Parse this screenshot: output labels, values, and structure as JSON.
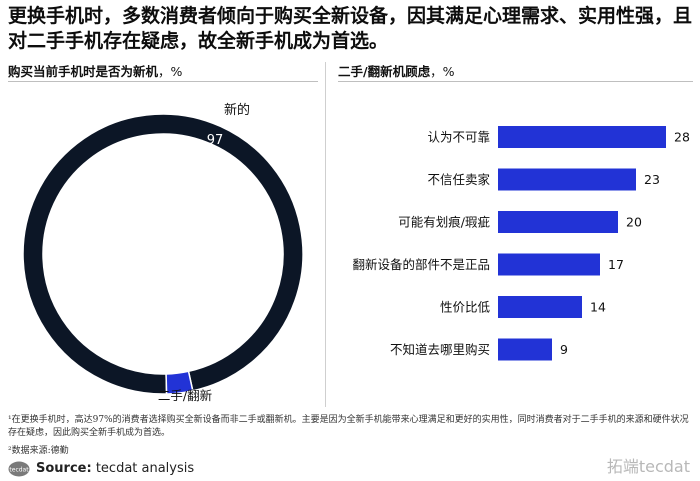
{
  "headline": "更换手机时，多数消费者倾向于购买全新设备，因其满足心理需求、实用性强，且对二手手机存在疑虑，故全新手机成为首选。",
  "left_panel": {
    "title": "购买当前手机时是否为新机",
    "unit": "，%"
  },
  "right_panel": {
    "title": "二手/翻新机顾虑",
    "unit": "，%"
  },
  "colors": {
    "dark": "#0c1626",
    "blue": "#2233d6"
  },
  "chart_data": [
    {
      "type": "pie",
      "variant": "donut",
      "title": "购买当前手机时是否为新机，%",
      "slices": [
        {
          "label": "新的",
          "value": 97,
          "color": "#0c1626"
        },
        {
          "label": "二手/翻新",
          "value": 3,
          "color": "#2233d6"
        }
      ]
    },
    {
      "type": "bar",
      "orientation": "horizontal",
      "title": "二手/翻新机顾虑，%",
      "categories": [
        "认为不可靠",
        "不信任卖家",
        "可能有划痕/瑕疵",
        "翻新设备的部件不是正品",
        "性价比低",
        "不知道去哪里购买"
      ],
      "values": [
        28,
        23,
        20,
        17,
        14,
        9
      ],
      "color": "#2233d6"
    }
  ],
  "footnote": "¹在更换手机时，高达97%的消费者选择购买全新设备而非二手或翻新机。主要是因为全新手机能带来心理满足和更好的实用性，同时消费者对于二手手机的来源和硬件状况存在疑虑，因此购买全新手机成为首选。",
  "source_note": "²数据来源:德勤",
  "logo_text": "tecdat",
  "source": {
    "label": "Source:",
    "text": " tecdat analysis"
  },
  "watermark": "拓端tecdat"
}
